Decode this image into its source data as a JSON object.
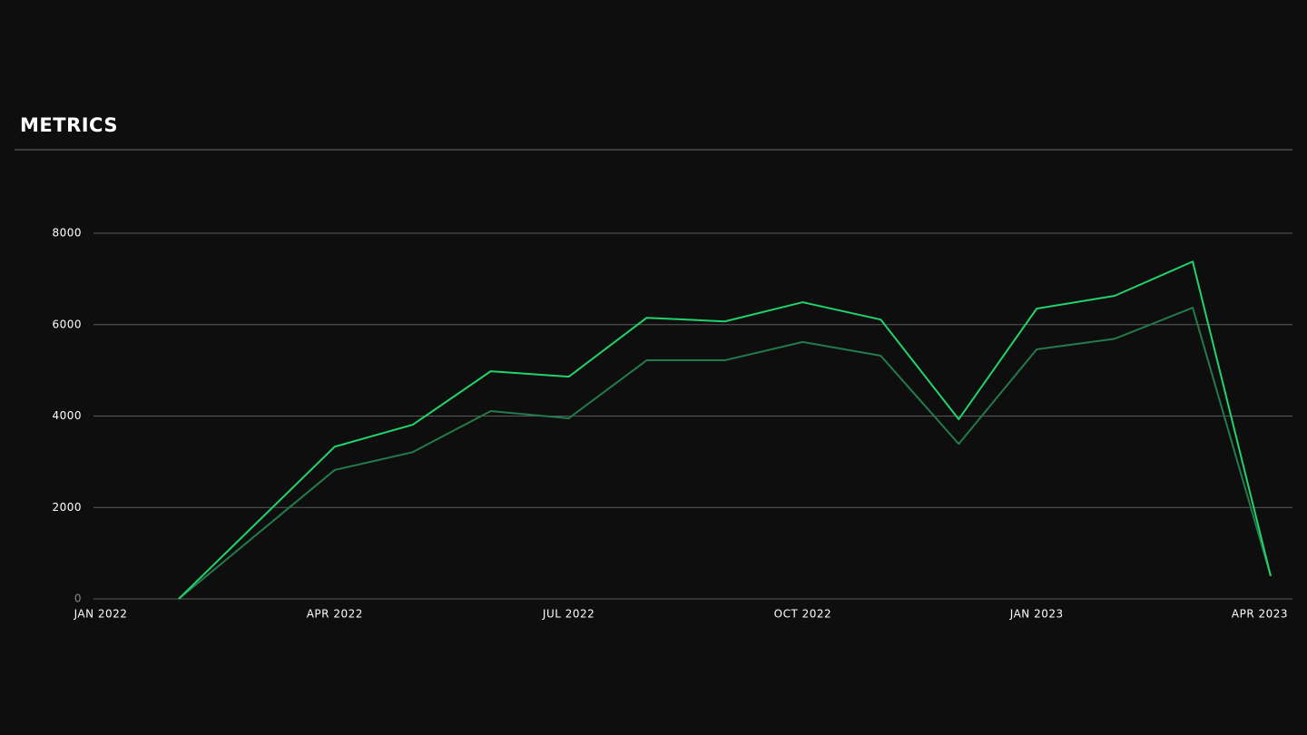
{
  "chart_data": {
    "type": "line",
    "title": "METRICS",
    "x": [
      "2022-02",
      "2022-04",
      "2022-05",
      "2022-06",
      "2022-07",
      "2022-08",
      "2022-09",
      "2022-10",
      "2022-11",
      "2022-12",
      "2023-01",
      "2023-02",
      "2023-03",
      "2023-04"
    ],
    "series": [
      {
        "color": "#22d36a",
        "values": [
          0,
          3330,
          3810,
          4980,
          4860,
          6150,
          6070,
          6490,
          6110,
          3930,
          6350,
          6630,
          7380,
          500
        ]
      },
      {
        "color": "#237a4b",
        "values": [
          0,
          2820,
          3210,
          4110,
          3950,
          5220,
          5220,
          5620,
          5320,
          3390,
          5460,
          5690,
          6370,
          500
        ]
      }
    ],
    "xlim": [
      "2022-01",
      "2023-04"
    ],
    "xticks": [
      {
        "value": "2022-01",
        "label": "JAN 2022"
      },
      {
        "value": "2022-04",
        "label": "APR 2022"
      },
      {
        "value": "2022-07",
        "label": "JUL 2022"
      },
      {
        "value": "2022-10",
        "label": "OCT 2022"
      },
      {
        "value": "2023-01",
        "label": "JAN 2023"
      },
      {
        "value": "2023-04",
        "label": "APR 2023"
      }
    ],
    "ylim": [
      0,
      8000
    ],
    "yticks": [
      0,
      2000,
      4000,
      6000,
      8000
    ],
    "grid": true
  }
}
